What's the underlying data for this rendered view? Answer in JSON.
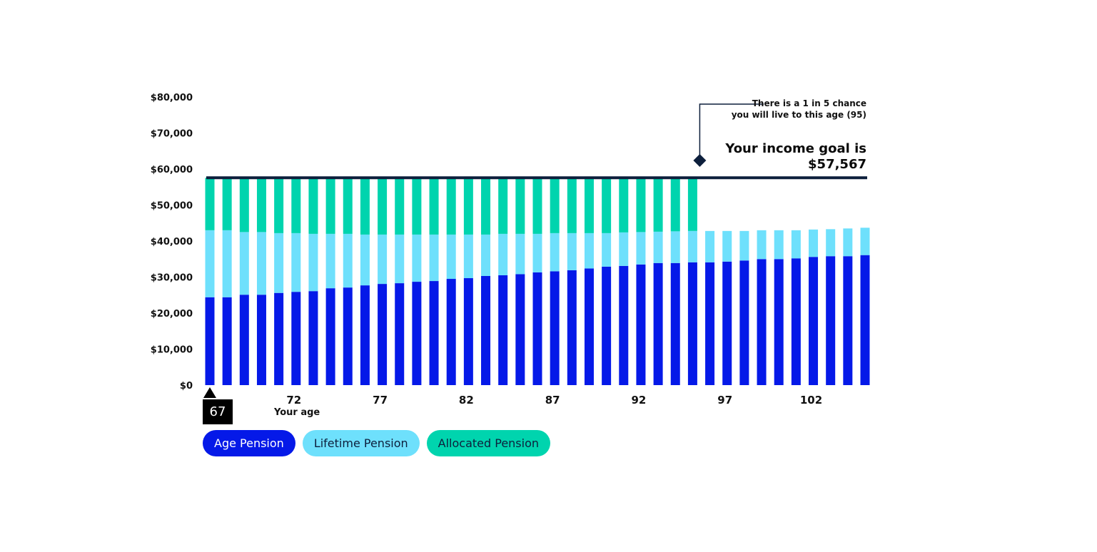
{
  "chart_data": {
    "type": "bar",
    "stacked": true,
    "xlabel": "Your age",
    "ylabel": "",
    "ylim": [
      0,
      80000
    ],
    "yticks": [
      "$0",
      "$10,000",
      "$20,000",
      "$30,000",
      "$40,000",
      "$50,000",
      "$60,000",
      "$70,000",
      "$80,000"
    ],
    "ytick_values": [
      0,
      10000,
      20000,
      30000,
      40000,
      50000,
      60000,
      70000,
      80000
    ],
    "x": [
      67,
      68,
      69,
      70,
      71,
      72,
      73,
      74,
      75,
      76,
      77,
      78,
      79,
      80,
      81,
      82,
      83,
      84,
      85,
      86,
      87,
      88,
      89,
      90,
      91,
      92,
      93,
      94,
      95,
      96,
      97,
      98,
      99,
      100,
      101,
      102,
      103,
      104,
      105
    ],
    "xtick_labels": [
      "72",
      "77",
      "82",
      "87",
      "92",
      "97",
      "102"
    ],
    "xtick_values": [
      72,
      77,
      82,
      87,
      92,
      97,
      102
    ],
    "series": [
      {
        "name": "Age Pension",
        "color": "#0519e8",
        "values": [
          24400,
          24400,
          25100,
          25100,
          25600,
          25900,
          26100,
          26900,
          27100,
          27700,
          28100,
          28300,
          28700,
          28900,
          29500,
          29700,
          30300,
          30500,
          30800,
          31300,
          31600,
          31900,
          32400,
          32900,
          33100,
          33500,
          33900,
          33900,
          34100,
          34100,
          34300,
          34600,
          35000,
          35000,
          35200,
          35600,
          35800,
          35800,
          36100
        ]
      },
      {
        "name": "Lifetime Pension",
        "color": "#6ee0fc",
        "values": [
          18600,
          18600,
          17400,
          17400,
          16600,
          16300,
          15900,
          15100,
          14900,
          14100,
          13700,
          13500,
          13100,
          12900,
          12300,
          12100,
          11500,
          11500,
          11200,
          10700,
          10600,
          10300,
          9800,
          9300,
          9300,
          9000,
          8700,
          8800,
          8700,
          8700,
          8500,
          8200,
          8000,
          8000,
          7800,
          7600,
          7500,
          7700,
          7600
        ]
      },
      {
        "name": "Allocated Pension",
        "color": "#00d4ae",
        "values": [
          14567,
          14567,
          15067,
          15067,
          15367,
          15367,
          15567,
          15567,
          15567,
          15767,
          15767,
          15767,
          15767,
          15767,
          15767,
          15767,
          15767,
          15567,
          15567,
          15567,
          15367,
          15367,
          15367,
          15367,
          15167,
          15067,
          14967,
          14867,
          14767,
          0,
          0,
          0,
          0,
          0,
          0,
          0,
          0,
          0,
          0
        ]
      }
    ],
    "goal_line": {
      "value": 57567,
      "color": "#0d1f3c"
    },
    "annotation": {
      "age": 95,
      "text_line1": "There is a 1 in 5 chance",
      "text_line2": "you will live to this age (95)"
    },
    "goal_text": "Your income goal is",
    "goal_amount": "$57,567",
    "start_age_label": "67",
    "legend": [
      "Age Pension",
      "Lifetime Pension",
      "Allocated Pension"
    ],
    "legend_placement": "bottom-left"
  }
}
